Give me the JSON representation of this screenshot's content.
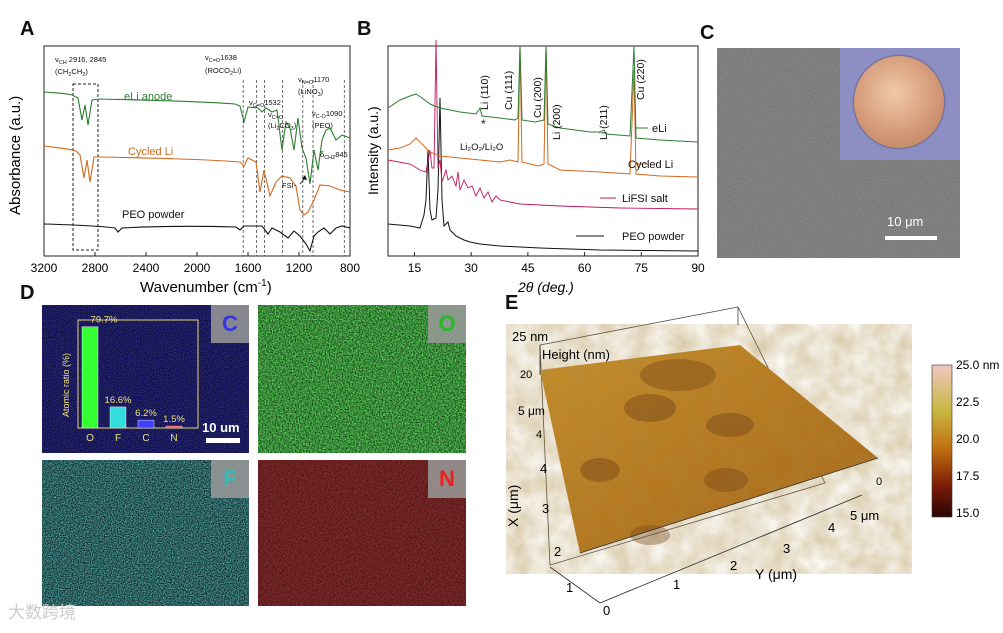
{
  "panels": {
    "a": "A",
    "b": "B",
    "c": "C",
    "d": "D",
    "e": "E"
  },
  "chart_a": {
    "type": "line",
    "xlabel": "Wavenumber (cm",
    "xlabel_sup": "-1",
    "xlabel_end": ")",
    "ylabel": "Absorbance (a.u.)",
    "xticks": [
      "3200",
      "2800",
      "2400",
      "2000",
      "1600",
      "1200",
      "800"
    ],
    "xlim": [
      3200,
      800
    ],
    "series": [
      {
        "name": "eLi anode",
        "color": "#2e7d32"
      },
      {
        "name": "Cycled Li",
        "color": "#d2691e"
      },
      {
        "name": "PEO powder",
        "color": "#111111"
      }
    ],
    "annotations": [
      {
        "text": "ν",
        "sub": "CH",
        "rest": " 2916, 2845"
      },
      {
        "text": "(CH",
        "sub": "2",
        "rest": "CH",
        "sub2": "2",
        "rest2": ")"
      },
      {
        "text": "ν",
        "sub": "C=O",
        "rest": "1638"
      },
      {
        "text": "(ROCO",
        "sub": "2",
        "rest": "Li)"
      },
      {
        "text": "ν",
        "sub": "C=O",
        "rest": "1532"
      },
      {
        "text": "ν",
        "sub": "C=O",
        "rest": ""
      },
      {
        "text": "(Li",
        "sub": "2",
        "rest": "CO",
        "sub2": "3",
        "rest2": ")"
      },
      {
        "text": "ν",
        "sub": "N=O",
        "rest": "1170"
      },
      {
        "text": "(LiNO",
        "sub": "3",
        "rest": ")"
      },
      {
        "text": "ν",
        "sub": "C-O",
        "rest": "1090"
      },
      {
        "text": "(PEO)"
      },
      {
        "text": "δ",
        "sub": "CH2",
        "rest": "845"
      },
      {
        "text": "FSI-"
      }
    ],
    "dashed_lines": [
      1638,
      1532,
      1470,
      1330,
      1170,
      1090,
      845
    ]
  },
  "chart_b": {
    "type": "line",
    "xlabel": "2θ (deg.)",
    "ylabel": "Intensity (a.u.)",
    "xticks": [
      "15",
      "30",
      "45",
      "60",
      "75",
      "90"
    ],
    "xlim": [
      8,
      90
    ],
    "series": [
      {
        "name": "eLi",
        "color": "#2e7d32"
      },
      {
        "name": "Cycled Li",
        "color": "#d2691e"
      },
      {
        "name": "LiFSI salt",
        "color": "#c2185b"
      },
      {
        "name": "PEO powder",
        "color": "#111111"
      }
    ],
    "peak_labels": [
      "Li (110)",
      "Cu (111)",
      "Cu (200)",
      "Li (200)",
      "Li (211)",
      "Cu (220)"
    ],
    "other_labels": [
      "Li₂O₂/Li₂O",
      "*"
    ]
  },
  "panel_c": {
    "scale_bar": "10 μm"
  },
  "panel_d": {
    "maps": [
      {
        "element": "C",
        "color": "#3a3aff"
      },
      {
        "element": "O",
        "color": "#22c222"
      },
      {
        "element": "F",
        "color": "#33cccc"
      },
      {
        "element": "N",
        "color": "#ff2020"
      }
    ],
    "scale_bar": "10 um",
    "inset": {
      "type": "bar",
      "ylabel": "Atomic ratio (%)",
      "categories": [
        "O",
        "F",
        "C",
        "N"
      ],
      "values": [
        79.7,
        16.6,
        6.2,
        1.5
      ],
      "labels": [
        "79.7%",
        "16.6%",
        "6.2%",
        "1.5%"
      ],
      "colors": [
        "#33ff33",
        "#33dddd",
        "#4040ff",
        "#ff4040"
      ]
    }
  },
  "panel_e": {
    "title": "Height (nm)",
    "z_top": "25 nm",
    "x_axis_label": "X (μm)",
    "y_axis_label": "Y (μm)",
    "x_ticks": [
      "0",
      "1",
      "2",
      "3",
      "4",
      "5 μm"
    ],
    "y_ticks": [
      "1",
      "2",
      "3",
      "4",
      "5 μm"
    ],
    "left_ticks": [
      "20",
      "5 μm",
      "4"
    ],
    "right_zero": "0",
    "colorbar": {
      "ticks": [
        "25.0 nm",
        "22.5",
        "20.0",
        "17.5",
        "15.0"
      ]
    }
  },
  "watermark": "大数跨境"
}
